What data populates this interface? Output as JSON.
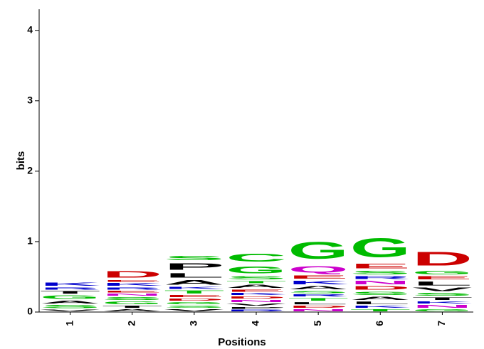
{
  "chart_data": {
    "type": "logo",
    "x_label": "Positions",
    "y_label": "bits",
    "categories": [
      "1",
      "2",
      "3",
      "4",
      "5",
      "6",
      "7"
    ],
    "ylim": [
      0,
      4.3
    ],
    "yticks": [
      0,
      1,
      2,
      3,
      4
    ],
    "colors": {
      "green": "#00bb00",
      "blue": "#0000cc",
      "red": "#cc0000",
      "black": "#000000",
      "purple": "#cc00cc"
    },
    "stacks": [
      [
        {
          "letter": "V",
          "color": "black",
          "bits": 0.04
        },
        {
          "letter": "S",
          "color": "green",
          "bits": 0.07
        },
        {
          "letter": "A",
          "color": "black",
          "bits": 0.06
        },
        {
          "letter": "G",
          "color": "green",
          "bits": 0.08
        },
        {
          "letter": "T",
          "color": "black",
          "bits": 0.06
        },
        {
          "letter": "R",
          "color": "blue",
          "bits": 0.05
        },
        {
          "letter": "K",
          "color": "blue",
          "bits": 0.07
        }
      ],
      [
        {
          "letter": "A",
          "color": "black",
          "bits": 0.05
        },
        {
          "letter": "T",
          "color": "black",
          "bits": 0.05
        },
        {
          "letter": "G",
          "color": "green",
          "bits": 0.06
        },
        {
          "letter": "S",
          "color": "green",
          "bits": 0.06
        },
        {
          "letter": "N",
          "color": "purple",
          "bits": 0.05
        },
        {
          "letter": "E",
          "color": "red",
          "bits": 0.04
        },
        {
          "letter": "R",
          "color": "blue",
          "bits": 0.05
        },
        {
          "letter": "K",
          "color": "blue",
          "bits": 0.06
        },
        {
          "letter": "E",
          "color": "red",
          "bits": 0.04
        },
        {
          "letter": "D",
          "color": "red",
          "bits": 0.15
        }
      ],
      [
        {
          "letter": "V",
          "color": "black",
          "bits": 0.05
        },
        {
          "letter": "S",
          "color": "green",
          "bits": 0.05
        },
        {
          "letter": "G",
          "color": "green",
          "bits": 0.05
        },
        {
          "letter": "D",
          "color": "red",
          "bits": 0.05
        },
        {
          "letter": "E",
          "color": "red",
          "bits": 0.05
        },
        {
          "letter": "T",
          "color": "green",
          "bits": 0.07
        },
        {
          "letter": "K",
          "color": "blue",
          "bits": 0.05
        },
        {
          "letter": "A",
          "color": "black",
          "bits": 0.1
        },
        {
          "letter": "L",
          "color": "black",
          "bits": 0.1
        },
        {
          "letter": "P",
          "color": "black",
          "bits": 0.15
        },
        {
          "letter": "S",
          "color": "green",
          "bits": 0.09
        }
      ],
      [
        {
          "letter": "R",
          "color": "blue",
          "bits": 0.04
        },
        {
          "letter": "P",
          "color": "black",
          "bits": 0.04
        },
        {
          "letter": "V",
          "color": "black",
          "bits": 0.05
        },
        {
          "letter": "N",
          "color": "purple",
          "bits": 0.05
        },
        {
          "letter": "D",
          "color": "red",
          "bits": 0.05
        },
        {
          "letter": "K",
          "color": "blue",
          "bits": 0.05
        },
        {
          "letter": "E",
          "color": "red",
          "bits": 0.05
        },
        {
          "letter": "A",
          "color": "black",
          "bits": 0.07
        },
        {
          "letter": "T",
          "color": "green",
          "bits": 0.05
        },
        {
          "letter": "S",
          "color": "green",
          "bits": 0.07
        },
        {
          "letter": "G",
          "color": "green",
          "bits": 0.16
        },
        {
          "letter": "C",
          "color": "green",
          "bits": 0.18
        }
      ],
      [
        {
          "letter": "N",
          "color": "purple",
          "bits": 0.05
        },
        {
          "letter": "D",
          "color": "red",
          "bits": 0.05
        },
        {
          "letter": "L",
          "color": "black",
          "bits": 0.05
        },
        {
          "letter": "T",
          "color": "green",
          "bits": 0.06
        },
        {
          "letter": "R",
          "color": "blue",
          "bits": 0.05
        },
        {
          "letter": "S",
          "color": "green",
          "bits": 0.05
        },
        {
          "letter": "A",
          "color": "black",
          "bits": 0.07
        },
        {
          "letter": "K",
          "color": "blue",
          "bits": 0.08
        },
        {
          "letter": "E",
          "color": "red",
          "bits": 0.07
        },
        {
          "letter": "Q",
          "color": "purple",
          "bits": 0.15
        },
        {
          "letter": "G",
          "color": "green",
          "bits": 0.39
        }
      ],
      [
        {
          "letter": "T",
          "color": "green",
          "bits": 0.05
        },
        {
          "letter": "K",
          "color": "blue",
          "bits": 0.05
        },
        {
          "letter": "L",
          "color": "black",
          "bits": 0.06
        },
        {
          "letter": "A",
          "color": "black",
          "bits": 0.07
        },
        {
          "letter": "S",
          "color": "green",
          "bits": 0.07
        },
        {
          "letter": "D",
          "color": "red",
          "bits": 0.08
        },
        {
          "letter": "N",
          "color": "purple",
          "bits": 0.08
        },
        {
          "letter": "R",
          "color": "blue",
          "bits": 0.06
        },
        {
          "letter": "S",
          "color": "green",
          "bits": 0.08
        },
        {
          "letter": "E",
          "color": "red",
          "bits": 0.1
        },
        {
          "letter": "G",
          "color": "green",
          "bits": 0.43
        }
      ],
      [
        {
          "letter": "G",
          "color": "green",
          "bits": 0.05
        },
        {
          "letter": "N",
          "color": "purple",
          "bits": 0.06
        },
        {
          "letter": "K",
          "color": "blue",
          "bits": 0.05
        },
        {
          "letter": "T",
          "color": "black",
          "bits": 0.06
        },
        {
          "letter": "S",
          "color": "green",
          "bits": 0.06
        },
        {
          "letter": "V",
          "color": "black",
          "bits": 0.08
        },
        {
          "letter": "L",
          "color": "black",
          "bits": 0.09
        },
        {
          "letter": "E",
          "color": "red",
          "bits": 0.07
        },
        {
          "letter": "G",
          "color": "green",
          "bits": 0.08
        },
        {
          "letter": "D",
          "color": "red",
          "bits": 0.31
        }
      ]
    ]
  }
}
